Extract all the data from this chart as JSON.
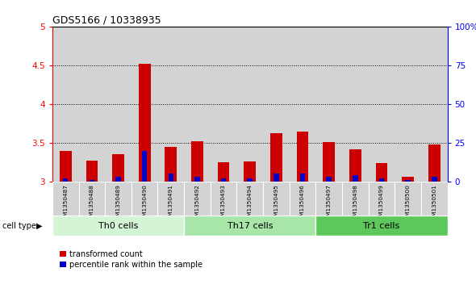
{
  "title": "GDS5166 / 10338935",
  "samples": [
    "GSM1350487",
    "GSM1350488",
    "GSM1350489",
    "GSM1350490",
    "GSM1350491",
    "GSM1350492",
    "GSM1350493",
    "GSM1350494",
    "GSM1350495",
    "GSM1350496",
    "GSM1350497",
    "GSM1350498",
    "GSM1350499",
    "GSM1350500",
    "GSM1350501"
  ],
  "transformed_counts": [
    3.4,
    3.27,
    3.35,
    4.52,
    3.45,
    3.52,
    3.25,
    3.26,
    3.62,
    3.65,
    3.51,
    3.42,
    3.24,
    3.06,
    3.48
  ],
  "percentile_ranks": [
    2,
    1,
    3,
    20,
    5,
    3,
    2,
    2,
    5,
    5,
    3,
    4,
    2,
    1,
    3
  ],
  "cell_groups": [
    {
      "label": "Th0 cells",
      "start": 0,
      "end": 5,
      "color": "#d4f5d4"
    },
    {
      "label": "Th17 cells",
      "start": 5,
      "end": 10,
      "color": "#a8e6a8"
    },
    {
      "label": "Tr1 cells",
      "start": 10,
      "end": 15,
      "color": "#5cc85c"
    }
  ],
  "ylim": [
    3.0,
    5.0
  ],
  "yticks_left": [
    3.0,
    3.5,
    4.0,
    4.5,
    5.0
  ],
  "yticks_right": [
    0,
    25,
    50,
    75,
    100
  ],
  "bar_color_red": "#cc0000",
  "bar_color_blue": "#0000cc",
  "col_bg_color": "#d3d3d3",
  "plot_bg_color": "#ffffff",
  "bar_width": 0.45,
  "blue_bar_width": 0.2,
  "legend_labels": [
    "transformed count",
    "percentile rank within the sample"
  ]
}
